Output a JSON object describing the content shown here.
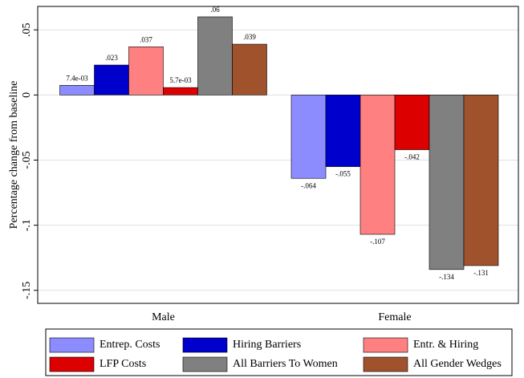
{
  "chart_data": {
    "type": "bar",
    "y_label": "Percentage change from baseline",
    "categories": [
      "Male",
      "Female"
    ],
    "series": [
      {
        "name": "Entrep. Costs",
        "color": "#8c8cff",
        "values": [
          0.0074,
          -0.064
        ],
        "value_labels": [
          "7.4e-03",
          "-.064"
        ]
      },
      {
        "name": "Hiring Barriers",
        "color": "#0000cc",
        "values": [
          0.023,
          -0.055
        ],
        "value_labels": [
          ".023",
          "-.055"
        ]
      },
      {
        "name": "Entr. & Hiring",
        "color": "#ff8080",
        "values": [
          0.037,
          -0.107
        ],
        "value_labels": [
          ".037",
          "-.107"
        ]
      },
      {
        "name": "LFP Costs",
        "color": "#dd0000",
        "values": [
          0.0057,
          -0.042
        ],
        "value_labels": [
          "5.7e-03",
          "-.042"
        ]
      },
      {
        "name": "All Barriers To Women",
        "color": "#808080",
        "values": [
          0.06,
          -0.134
        ],
        "value_labels": [
          ".06",
          "-.134"
        ]
      },
      {
        "name": "All Gender Wedges",
        "color": "#a0522d",
        "values": [
          0.039,
          -0.131
        ],
        "value_labels": [
          ".039",
          "-.131"
        ]
      }
    ],
    "ylim": [
      -0.16,
      0.068
    ],
    "yticks": [
      {
        "value": -0.15,
        "label": "-.15"
      },
      {
        "value": -0.1,
        "label": "-.1"
      },
      {
        "value": -0.05,
        "label": "-.05"
      },
      0,
      {
        "value": 0.05,
        "label": ".05"
      }
    ],
    "grid": true,
    "legend": "bottom"
  }
}
